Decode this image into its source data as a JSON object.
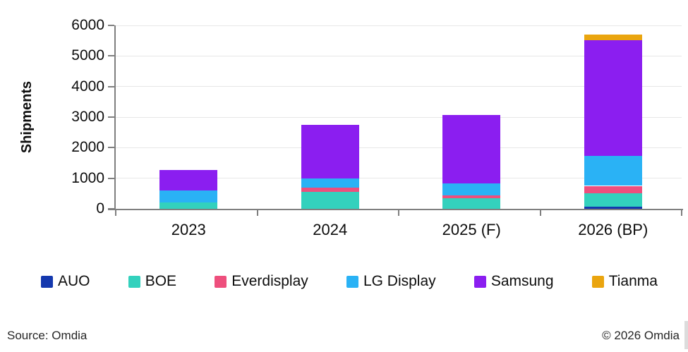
{
  "chart_data": {
    "type": "bar",
    "stacked": true,
    "title": "",
    "xlabel": "",
    "ylabel": "Shipments",
    "categories": [
      "2023",
      "2024",
      "2025 (F)",
      "2026 (BP)"
    ],
    "series": [
      {
        "name": "AUO",
        "color": "#1438ae",
        "values": [
          0,
          0,
          0,
          60
        ]
      },
      {
        "name": "BOE",
        "color": "#33d1bd",
        "values": [
          200,
          550,
          350,
          440
        ]
      },
      {
        "name": "Everdisplay",
        "color": "#ee4f7d",
        "values": [
          0,
          140,
          80,
          250
        ]
      },
      {
        "name": "LG Display",
        "color": "#2ab2f5",
        "values": [
          400,
          300,
          400,
          980
        ]
      },
      {
        "name": "Samsung",
        "color": "#8b1ef0",
        "values": [
          660,
          1750,
          2240,
          3780
        ]
      },
      {
        "name": "Tianma",
        "color": "#eaa50f",
        "values": [
          0,
          0,
          0,
          190
        ]
      }
    ],
    "totals": [
      1260,
      2740,
      3070,
      5700
    ],
    "ylim": [
      0,
      6000
    ],
    "ytick_step": 1000,
    "grid": true,
    "legend_position": "bottom",
    "axis_color": "#7f7f7f",
    "gridline_color": "#e7e7e7"
  },
  "footer": {
    "source": "Source: Omdia",
    "copyright": "© 2026 Omdia"
  }
}
